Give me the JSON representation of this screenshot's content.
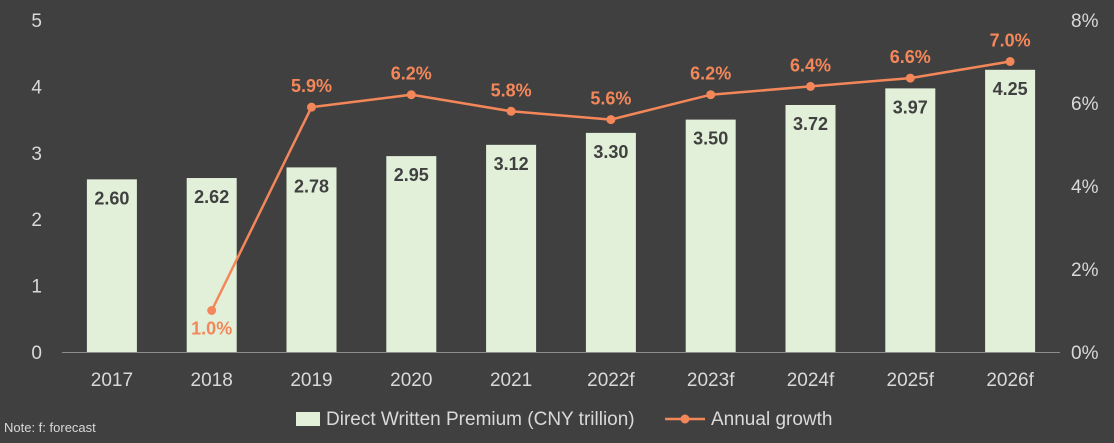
{
  "chart_data": {
    "type": "bar",
    "categories": [
      "2017",
      "2018",
      "2019",
      "2020",
      "2021",
      "2022f",
      "2023f",
      "2024f",
      "2025f",
      "2026f"
    ],
    "series": [
      {
        "name": "Direct Written Premium (CNY trillion)",
        "type": "bar",
        "axis": "left",
        "values": [
          2.6,
          2.62,
          2.78,
          2.95,
          3.12,
          3.3,
          3.5,
          3.72,
          3.97,
          4.25
        ],
        "labels": [
          "2.60",
          "2.62",
          "2.78",
          "2.95",
          "3.12",
          "3.30",
          "3.50",
          "3.72",
          "3.97",
          "4.25"
        ],
        "color": "#E2F0D9"
      },
      {
        "name": "Annual growth",
        "type": "line",
        "axis": "right",
        "values": [
          null,
          1.0,
          5.9,
          6.2,
          5.8,
          5.6,
          6.2,
          6.4,
          6.6,
          7.0
        ],
        "labels": [
          "",
          "1.0%",
          "5.9%",
          "6.2%",
          "5.8%",
          "5.6%",
          "6.2%",
          "6.4%",
          "6.6%",
          "7.0%"
        ],
        "color": "#F4875A"
      }
    ],
    "y_left": {
      "ylim": [
        0,
        5
      ],
      "ticks": [
        "0",
        "1",
        "2",
        "3",
        "4",
        "5"
      ]
    },
    "y_right": {
      "ylim": [
        0,
        8
      ],
      "ticks": [
        "0%",
        "2%",
        "4%",
        "6%",
        "8%"
      ]
    },
    "grid": false,
    "legend": "bottom-center"
  },
  "note": "Note: f: forecast",
  "colors": {
    "background": "#404040",
    "axis_text": "#D9D9D9",
    "bar_label": "#404040",
    "axis_line": "#8C8C8C"
  }
}
